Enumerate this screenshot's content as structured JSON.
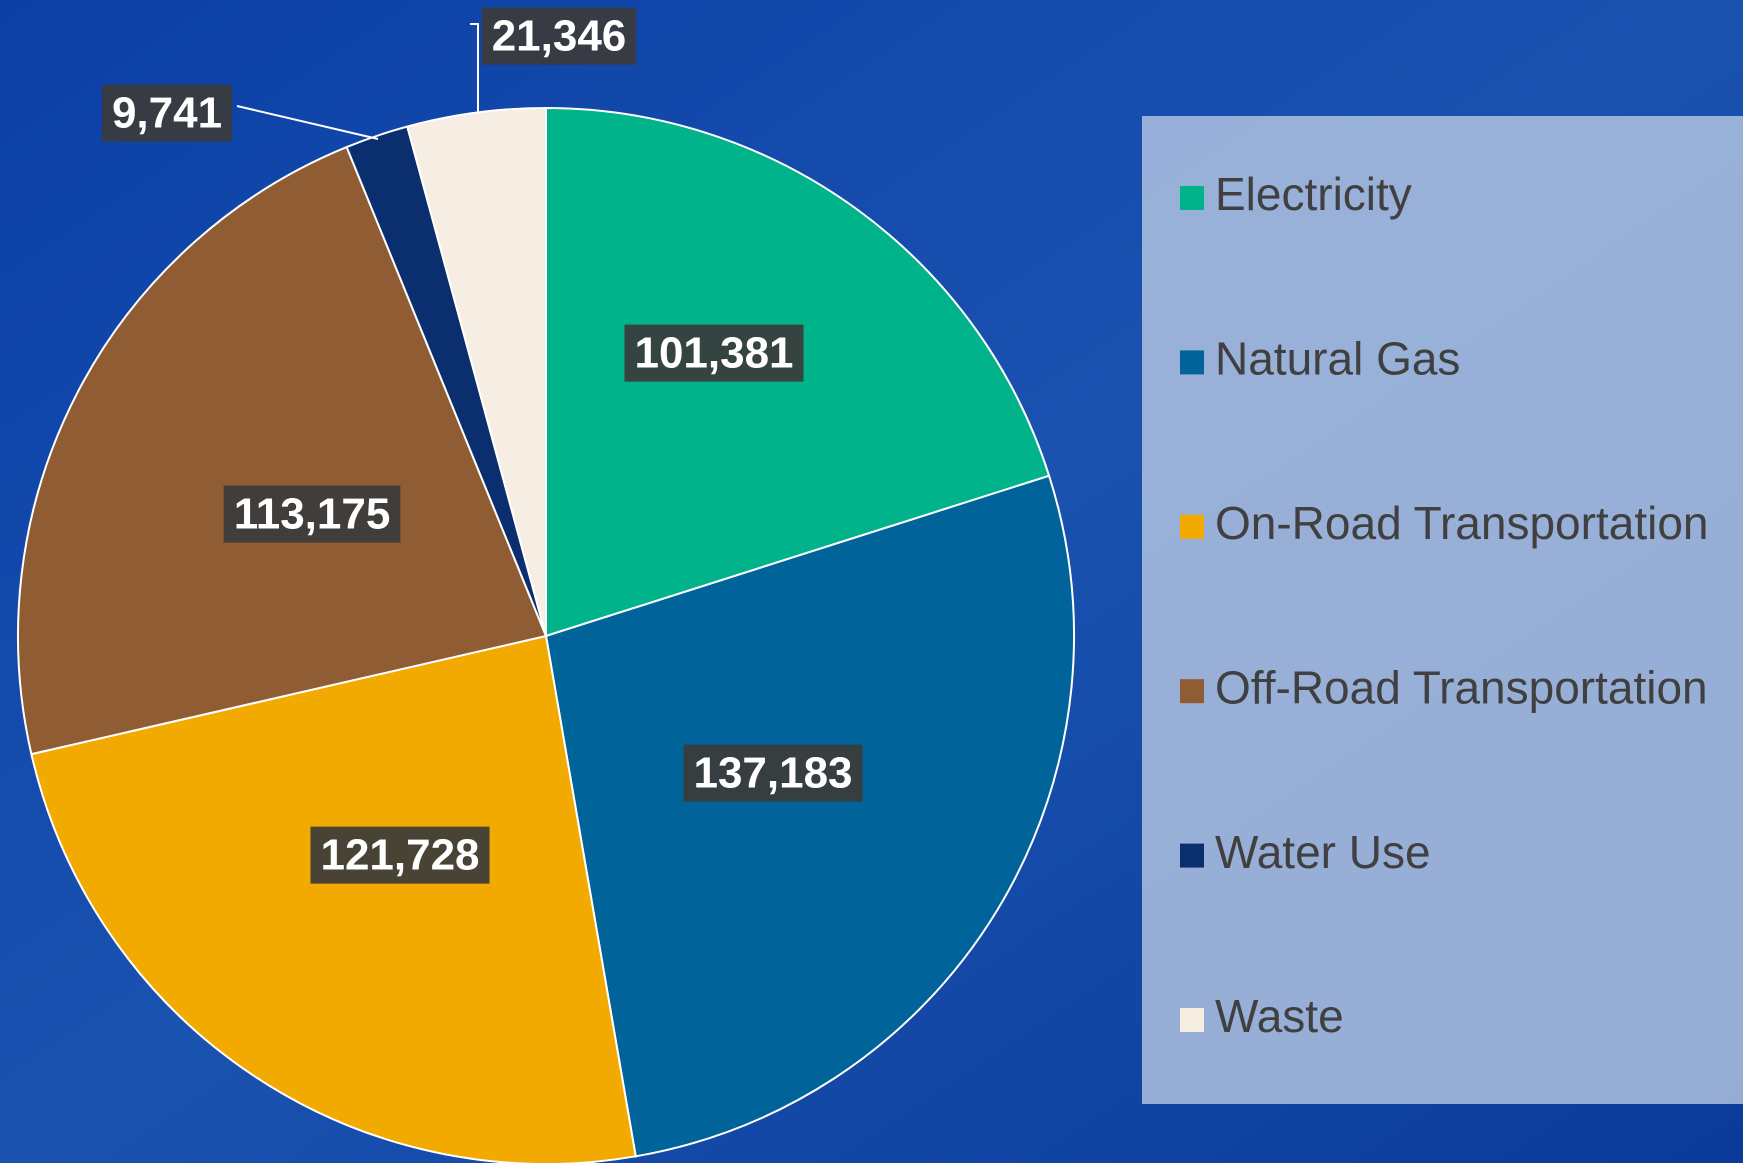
{
  "chart_data": {
    "type": "pie",
    "categories": [
      "Electricity",
      "Natural Gas",
      "On-Road Transportation",
      "Off-Road Transportation",
      "Water Use",
      "Waste"
    ],
    "values": [
      101381,
      137183,
      121728,
      113175,
      9741,
      21346
    ],
    "value_labels": [
      "101,381",
      "137,183",
      "121,728",
      "113,175",
      "9,741",
      "21,346"
    ],
    "colors": [
      "#00b38a",
      "#00639a",
      "#f2a900",
      "#8f5c33",
      "#0b2e6f",
      "#f6ede3"
    ],
    "legend": "right"
  }
}
